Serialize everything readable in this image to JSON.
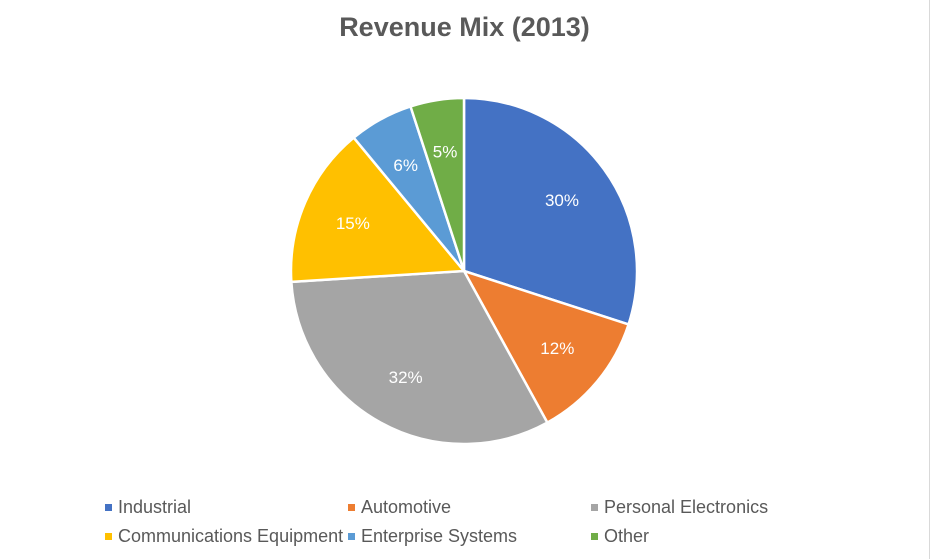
{
  "chart_data": {
    "type": "pie",
    "title": "Revenue Mix (2013)",
    "categories": [
      "Industrial",
      "Automotive",
      "Personal Electronics",
      "Communications Equipment",
      "Enterprise Systems",
      "Other"
    ],
    "values": [
      30,
      12,
      32,
      15,
      6,
      5
    ],
    "data_labels": [
      "30%",
      "12%",
      "32%",
      "15%",
      "6%",
      "5%"
    ],
    "colors": [
      "#4472C4",
      "#ED7D31",
      "#A5A5A5",
      "#FFC000",
      "#5B9BD5",
      "#70AD47"
    ],
    "legend_placement": "bottom",
    "start_angle": "12 o'clock, clockwise"
  }
}
